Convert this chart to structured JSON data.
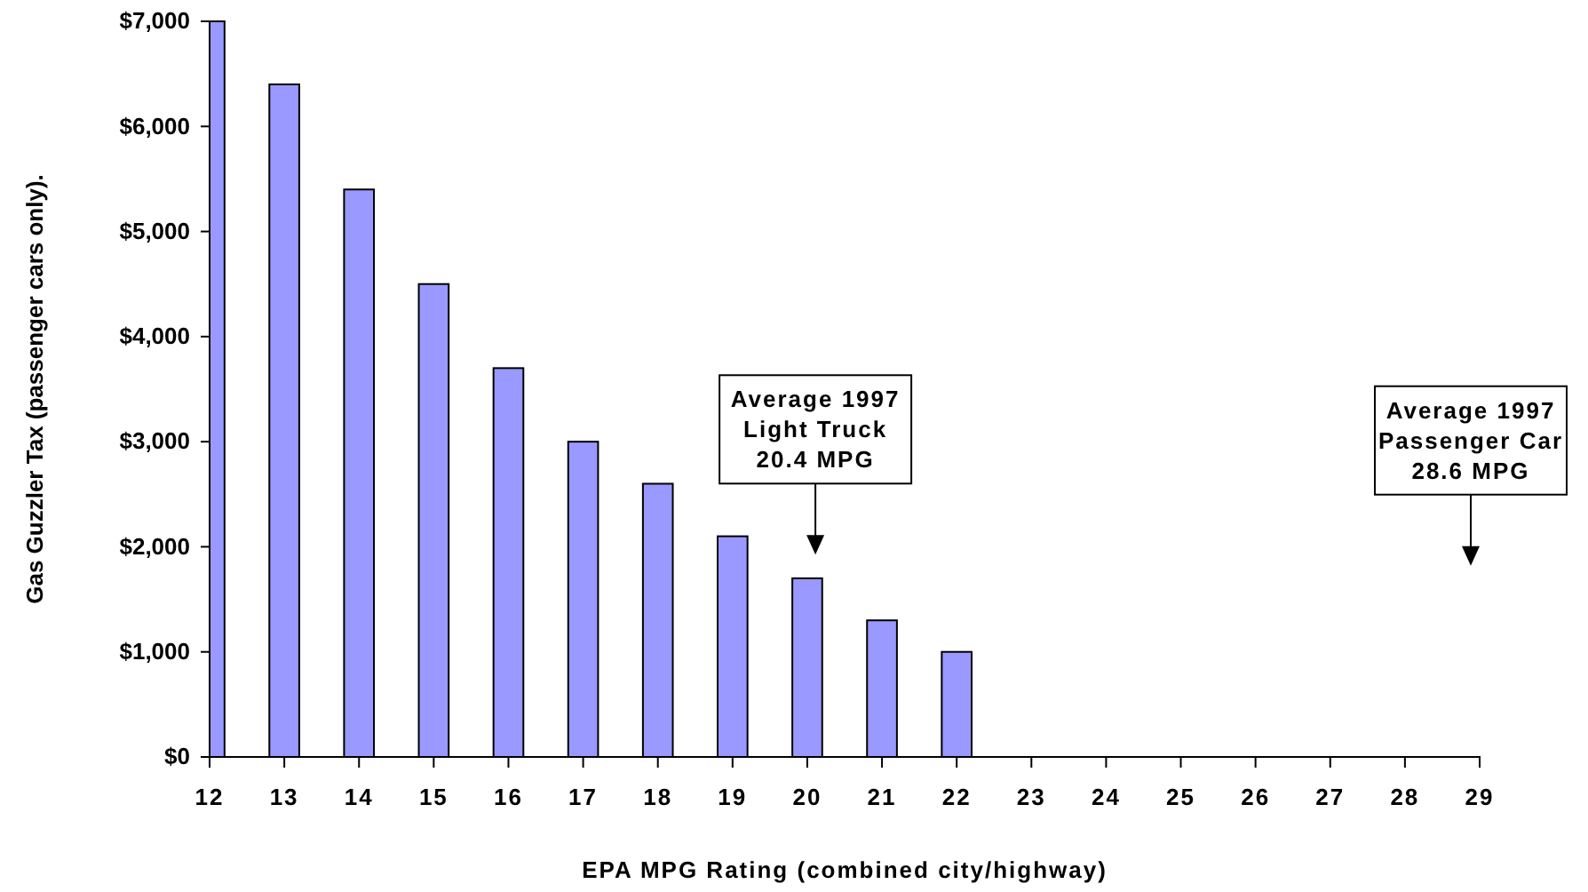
{
  "chart_data": {
    "type": "bar",
    "xlabel": "EPA MPG Rating (combined city/highway)",
    "ylabel": "Gas Guzzler Tax (passenger cars only).",
    "x": [
      12,
      13,
      14,
      15,
      16,
      17,
      18,
      19,
      20,
      21,
      22
    ],
    "values": [
      7000,
      6400,
      5400,
      4500,
      3700,
      3000,
      2600,
      2100,
      1700,
      1300,
      1000
    ],
    "color": "#9999ff",
    "xlim": [
      12,
      29
    ],
    "xticks": [
      12,
      13,
      14,
      15,
      16,
      17,
      18,
      19,
      20,
      21,
      22,
      23,
      24,
      25,
      26,
      27,
      28,
      29
    ],
    "ylim": [
      0,
      7000
    ],
    "yticks": [
      {
        "value": 0,
        "label": "$0"
      },
      {
        "value": 1000,
        "label": "$1,000"
      },
      {
        "value": 2000,
        "label": "$2,000"
      },
      {
        "value": 3000,
        "label": "$3,000"
      },
      {
        "value": 4000,
        "label": "$4,000"
      },
      {
        "value": 5000,
        "label": "$5,000"
      },
      {
        "value": 6000,
        "label": "$6,000"
      },
      {
        "value": 7000,
        "label": "$7,000"
      }
    ],
    "grid": false,
    "annotations": [
      "Average 1997\nLight Truck\n20.4 MPG",
      "Average 1997\nPassenger Car\n28.6 MPG"
    ]
  }
}
